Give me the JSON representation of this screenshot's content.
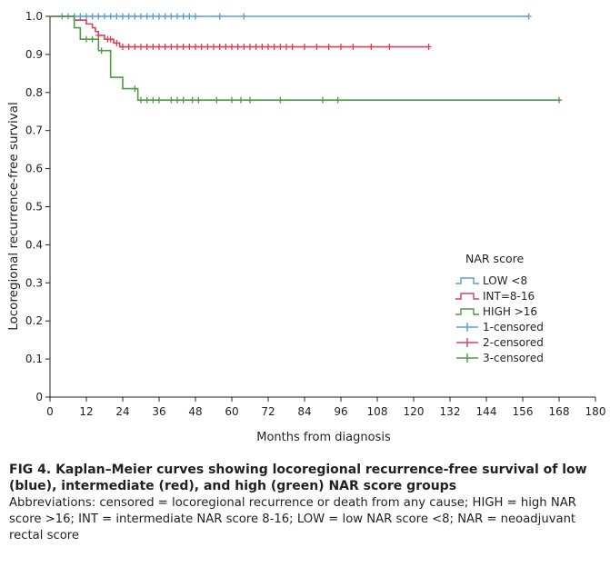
{
  "chart_data": {
    "type": "line",
    "subtype": "kaplan-meier step curves",
    "xlabel": "Months from diagnosis",
    "ylabel": "Locoregional recurrence-free survival",
    "xlim": [
      0,
      180
    ],
    "ylim": [
      0,
      1.0
    ],
    "xticks": [
      "0",
      "12",
      "24",
      "36",
      "48",
      "60",
      "72",
      "84",
      "96",
      "108",
      "120",
      "132",
      "144",
      "156",
      "168",
      "180"
    ],
    "yticks": [
      "0",
      "0.1",
      "0.2",
      "0.3",
      "0.4",
      "0.5",
      "0.6",
      "0.7",
      "0.8",
      "0.9",
      "1.0"
    ],
    "grid": false,
    "legend_title": "NAR score",
    "legend_position": "lower-right",
    "series": [
      {
        "name": "LOW <8",
        "censor_label": "1-censored",
        "color": "#5b9bd5",
        "steps": [
          [
            0,
            1.0
          ],
          [
            158,
            1.0
          ]
        ],
        "censored": [
          [
            4,
            1.0
          ],
          [
            6,
            1.0
          ],
          [
            8,
            1.0
          ],
          [
            10,
            1.0
          ],
          [
            12,
            1.0
          ],
          [
            14,
            1.0
          ],
          [
            16,
            1.0
          ],
          [
            18,
            1.0
          ],
          [
            20,
            1.0
          ],
          [
            22,
            1.0
          ],
          [
            24,
            1.0
          ],
          [
            26,
            1.0
          ],
          [
            28,
            1.0
          ],
          [
            30,
            1.0
          ],
          [
            32,
            1.0
          ],
          [
            34,
            1.0
          ],
          [
            36,
            1.0
          ],
          [
            38,
            1.0
          ],
          [
            40,
            1.0
          ],
          [
            42,
            1.0
          ],
          [
            44,
            1.0
          ],
          [
            46,
            1.0
          ],
          [
            48,
            1.0
          ],
          [
            56,
            1.0
          ],
          [
            64,
            1.0
          ],
          [
            158,
            1.0
          ]
        ]
      },
      {
        "name": "INT=8-16",
        "censor_label": "2-censored",
        "color": "#d9405a",
        "steps": [
          [
            0,
            1.0
          ],
          [
            8,
            0.99
          ],
          [
            12,
            0.98
          ],
          [
            14,
            0.97
          ],
          [
            15,
            0.96
          ],
          [
            16,
            0.95
          ],
          [
            18,
            0.94
          ],
          [
            21,
            0.93
          ],
          [
            23,
            0.92
          ],
          [
            125,
            0.92
          ]
        ],
        "censored": [
          [
            16,
            0.95
          ],
          [
            19,
            0.94
          ],
          [
            20,
            0.94
          ],
          [
            22,
            0.93
          ],
          [
            24,
            0.92
          ],
          [
            26,
            0.92
          ],
          [
            28,
            0.92
          ],
          [
            30,
            0.92
          ],
          [
            32,
            0.92
          ],
          [
            34,
            0.92
          ],
          [
            36,
            0.92
          ],
          [
            38,
            0.92
          ],
          [
            40,
            0.92
          ],
          [
            42,
            0.92
          ],
          [
            44,
            0.92
          ],
          [
            46,
            0.92
          ],
          [
            48,
            0.92
          ],
          [
            50,
            0.92
          ],
          [
            52,
            0.92
          ],
          [
            54,
            0.92
          ],
          [
            56,
            0.92
          ],
          [
            58,
            0.92
          ],
          [
            60,
            0.92
          ],
          [
            62,
            0.92
          ],
          [
            64,
            0.92
          ],
          [
            66,
            0.92
          ],
          [
            68,
            0.92
          ],
          [
            70,
            0.92
          ],
          [
            72,
            0.92
          ],
          [
            74,
            0.92
          ],
          [
            76,
            0.92
          ],
          [
            78,
            0.92
          ],
          [
            80,
            0.92
          ],
          [
            84,
            0.92
          ],
          [
            88,
            0.92
          ],
          [
            92,
            0.92
          ],
          [
            96,
            0.92
          ],
          [
            100,
            0.92
          ],
          [
            106,
            0.92
          ],
          [
            112,
            0.92
          ],
          [
            125,
            0.92
          ]
        ]
      },
      {
        "name": "HIGH >16",
        "censor_label": "3-censored",
        "color": "#4e9a47",
        "steps": [
          [
            0,
            1.0
          ],
          [
            8,
            0.97
          ],
          [
            10,
            0.94
          ],
          [
            16,
            0.91
          ],
          [
            20,
            0.84
          ],
          [
            24,
            0.81
          ],
          [
            29,
            0.78
          ],
          [
            168,
            0.78
          ]
        ],
        "censored": [
          [
            12,
            0.94
          ],
          [
            14,
            0.94
          ],
          [
            17,
            0.91
          ],
          [
            28,
            0.81
          ],
          [
            30,
            0.78
          ],
          [
            32,
            0.78
          ],
          [
            34,
            0.78
          ],
          [
            36,
            0.78
          ],
          [
            40,
            0.78
          ],
          [
            42,
            0.78
          ],
          [
            44,
            0.78
          ],
          [
            47,
            0.78
          ],
          [
            49,
            0.78
          ],
          [
            55,
            0.78
          ],
          [
            60,
            0.78
          ],
          [
            63,
            0.78
          ],
          [
            66,
            0.78
          ],
          [
            76,
            0.78
          ],
          [
            90,
            0.78
          ],
          [
            95,
            0.78
          ],
          [
            168,
            0.78
          ]
        ]
      }
    ]
  },
  "caption": {
    "title": "FIG 4. Kaplan–Meier curves showing locoregional recurrence-free survival of low (blue), intermediate (red), and high (green) NAR score groups",
    "abbreviations": "Abbreviations: censored = locoregional recurrence or death from any cause; HIGH = high NAR score >16; INT = intermediate NAR score 8-16; LOW = low NAR score <8; NAR = neoadjuvant rectal score"
  }
}
